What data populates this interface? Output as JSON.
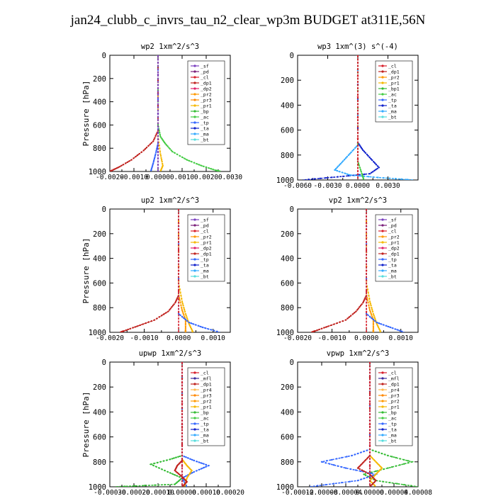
{
  "title": "jan24_clubb_c_invrs_tau_n2_clear_wp3m  BUDGET at311E,56N",
  "colors": {
    "_sf": "#7a3fbf",
    "_pd": "#7a1f7a",
    "_cl": "#d81e2a",
    "_mfl": "#3b2a9e",
    "_dp1": "#c0221e",
    "_dp2": "#e0206a",
    "_dp3": "#d81e2a",
    "_dp4": "#d81e2a",
    "_pr1": "#f5b800",
    "_pr2": "#ff9900",
    "_pr3": "#ff8800",
    "_pr4": "#ffb84d",
    "_bp": "#33bb33",
    "_bp1": "#33bb33",
    "_ac": "#44cc44",
    "_tp": "#3366ff",
    "_ta": "#1122cc",
    "_ma": "#33aaff",
    "_bt": "#55dddd"
  },
  "chart_data": [
    {
      "type": "line",
      "title": "wp2  1xm^2/s^3",
      "ylabel": "Pressure [hPa]",
      "xlim": [
        -0.002,
        0.003
      ],
      "ylim": [
        1000,
        0
      ],
      "xticks": [
        "-0.0020",
        "-0.0010",
        "0.0000",
        "0.0010",
        "0.0020",
        "0.0030"
      ],
      "xtick_values": [
        -0.002,
        -0.001,
        0,
        0.001,
        0.002,
        0.003
      ],
      "yticks": [
        "0",
        "200",
        "400",
        "600",
        "800",
        "1000"
      ],
      "legend": [
        "_sf",
        "_pd",
        "_cl",
        "_dp1",
        "_dp2",
        "_pr2",
        "_pr3",
        "_pr1",
        "_bp",
        "_ac",
        "_tp",
        "_ta",
        "_ma",
        "_bt"
      ],
      "series": [
        {
          "name": "_ac",
          "points": [
            [
              0,
              0
            ],
            [
              0,
              600
            ],
            [
              0.0001,
              700
            ],
            [
              0.0003,
              760
            ],
            [
              0.0006,
              830
            ],
            [
              0.0012,
              900
            ],
            [
              0.0018,
              950
            ],
            [
              0.0024,
              990
            ],
            [
              0.0026,
              1000
            ]
          ]
        },
        {
          "name": "_dp1",
          "points": [
            [
              0,
              0
            ],
            [
              0,
              650
            ],
            [
              -0.0002,
              740
            ],
            [
              -0.0006,
              820
            ],
            [
              -0.0011,
              900
            ],
            [
              -0.0016,
              960
            ],
            [
              -0.0019,
              990
            ],
            [
              -0.002,
              1000
            ]
          ]
        },
        {
          "name": "_tp",
          "points": [
            [
              0,
              0
            ],
            [
              0,
              760
            ],
            [
              -0.0001,
              850
            ],
            [
              -0.0002,
              930
            ],
            [
              -0.0003,
              1000
            ]
          ]
        },
        {
          "name": "_pr1",
          "points": [
            [
              0,
              0
            ],
            [
              0,
              700
            ],
            [
              0.0001,
              850
            ],
            [
              0.0002,
              950
            ],
            [
              0.0001,
              1000
            ]
          ]
        },
        {
          "name": "_pd",
          "points": [
            [
              0,
              0
            ],
            [
              0,
              1000
            ]
          ]
        },
        {
          "name": "_sf",
          "points": [
            [
              0,
              0
            ],
            [
              0,
              1000
            ]
          ]
        }
      ]
    },
    {
      "type": "line",
      "title": "wp3  1xm^(3) s^(-4)",
      "ylabel": "",
      "xlim": [
        -0.006,
        0.006
      ],
      "ylim": [
        1000,
        0
      ],
      "xticks": [
        "-0.0060",
        "-0.0030",
        "0.0000",
        "0.0030"
      ],
      "xtick_values": [
        -0.006,
        -0.003,
        0,
        0.003
      ],
      "yticks": [
        "0",
        "200",
        "400",
        "600",
        "800",
        "1000"
      ],
      "legend": [
        "_cl",
        "_dp1",
        "_pr2",
        "_pr1",
        "_bp1",
        "_ac",
        "_tp",
        "_ta",
        "_ma",
        "_bt"
      ],
      "series": [
        {
          "name": "_ta",
          "points": [
            [
              0,
              0
            ],
            [
              0,
              700
            ],
            [
              0.0005,
              760
            ],
            [
              0.0013,
              830
            ],
            [
              0.0021,
              900
            ],
            [
              0.0012,
              950
            ],
            [
              -0.002,
              975
            ],
            [
              -0.0055,
              1000
            ]
          ]
        },
        {
          "name": "_ma",
          "points": [
            [
              0,
              0
            ],
            [
              0,
              720
            ],
            [
              -0.0008,
              790
            ],
            [
              -0.0016,
              860
            ],
            [
              -0.0023,
              920
            ],
            [
              -0.0008,
              960
            ],
            [
              0.002,
              980
            ],
            [
              0.0055,
              1000
            ]
          ]
        },
        {
          "name": "_ac",
          "points": [
            [
              0,
              0
            ],
            [
              0,
              850
            ],
            [
              0.0004,
              950
            ],
            [
              0.0006,
              1000
            ]
          ]
        },
        {
          "name": "_dp1",
          "points": [
            [
              0,
              0
            ],
            [
              0,
              1000
            ]
          ]
        },
        {
          "name": "_cl",
          "points": [
            [
              0,
              0
            ],
            [
              0,
              1000
            ]
          ]
        }
      ]
    },
    {
      "type": "line",
      "title": "up2  1xm^2/s^3",
      "ylabel": "Pressure [hPa]",
      "xlim": [
        -0.002,
        0.0015
      ],
      "ylim": [
        1000,
        0
      ],
      "xticks": [
        "-0.0020",
        "-0.0010",
        "0.0000",
        "0.0010"
      ],
      "xtick_values": [
        -0.002,
        -0.001,
        0,
        0.001
      ],
      "yticks": [
        "0",
        "200",
        "400",
        "600",
        "800",
        "1000"
      ],
      "legend": [
        "_sf",
        "_pd",
        "_cl",
        "_pr2",
        "_pr1",
        "_dp2",
        "_dp1",
        "_tp",
        "_ta",
        "_ma",
        "_bt"
      ],
      "series": [
        {
          "name": "_dp1",
          "points": [
            [
              0,
              0
            ],
            [
              0,
              700
            ],
            [
              -0.0001,
              760
            ],
            [
              -0.0003,
              830
            ],
            [
              -0.0007,
              900
            ],
            [
              -0.0012,
              950
            ],
            [
              -0.0016,
              990
            ],
            [
              -0.0017,
              1000
            ]
          ]
        },
        {
          "name": "_pr1",
          "points": [
            [
              0,
              0
            ],
            [
              0,
              600
            ],
            [
              0.0001,
              750
            ],
            [
              0.0002,
              850
            ],
            [
              0.0003,
              930
            ],
            [
              0.0004,
              990
            ],
            [
              0.0004,
              1000
            ]
          ]
        },
        {
          "name": "_pr2",
          "points": [
            [
              0,
              0
            ],
            [
              0,
              700
            ],
            [
              0.0001,
              820
            ],
            [
              0.0002,
              900
            ],
            [
              0.0002,
              980
            ],
            [
              0.0002,
              1000
            ]
          ]
        },
        {
          "name": "_tp",
          "points": [
            [
              0,
              0
            ],
            [
              0,
              850
            ],
            [
              0.0003,
              920
            ],
            [
              0.0007,
              960
            ],
            [
              0.0012,
              1000
            ]
          ]
        },
        {
          "name": "_cl",
          "points": [
            [
              0,
              0
            ],
            [
              0,
              1000
            ]
          ]
        }
      ]
    },
    {
      "type": "line",
      "title": "vp2  1xm^2/s^3",
      "ylabel": "",
      "xlim": [
        -0.002,
        0.0015
      ],
      "ylim": [
        1000,
        0
      ],
      "xticks": [
        "-0.0020",
        "-0.0010",
        "0.0000",
        "0.0010"
      ],
      "xtick_values": [
        -0.002,
        -0.001,
        0,
        0.001
      ],
      "yticks": [
        "0",
        "200",
        "400",
        "600",
        "800",
        "1000"
      ],
      "legend": [
        "_sf",
        "_pd",
        "_cl",
        "_pr2",
        "_pr1",
        "_dp2",
        "_dp1",
        "_tp",
        "_ta",
        "_ma",
        "_bt"
      ],
      "series": [
        {
          "name": "_dp1",
          "points": [
            [
              0,
              0
            ],
            [
              0,
              700
            ],
            [
              -0.0001,
              760
            ],
            [
              -0.0003,
              830
            ],
            [
              -0.0006,
              900
            ],
            [
              -0.0011,
              950
            ],
            [
              -0.0015,
              990
            ],
            [
              -0.0016,
              1000
            ]
          ]
        },
        {
          "name": "_pr1",
          "points": [
            [
              0,
              0
            ],
            [
              0,
              600
            ],
            [
              0.0001,
              750
            ],
            [
              0.0002,
              850
            ],
            [
              0.0003,
              930
            ],
            [
              0.0004,
              990
            ],
            [
              0.0004,
              1000
            ]
          ]
        },
        {
          "name": "_pr2",
          "points": [
            [
              0,
              0
            ],
            [
              0,
              700
            ],
            [
              0.0001,
              820
            ],
            [
              0.0002,
              900
            ],
            [
              0.0002,
              980
            ],
            [
              0.0002,
              1000
            ]
          ]
        },
        {
          "name": "_tp",
          "points": [
            [
              0,
              0
            ],
            [
              0,
              850
            ],
            [
              0.0003,
              920
            ],
            [
              0.0007,
              960
            ],
            [
              0.0011,
              1000
            ]
          ]
        },
        {
          "name": "_cl",
          "points": [
            [
              0,
              0
            ],
            [
              0,
              1000
            ]
          ]
        }
      ]
    },
    {
      "type": "line",
      "title": "upwp  1xm^2/s^3",
      "ylabel": "Pressure [hPa]",
      "xlim": [
        -0.0003,
        0.0002
      ],
      "ylim": [
        1000,
        0
      ],
      "xticks": [
        "-0.00030",
        "-0.00020",
        "-0.00010",
        "0.00000",
        "0.00010",
        "0.00020"
      ],
      "xtick_values": [
        -0.0003,
        -0.0002,
        -0.0001,
        0,
        0.0001,
        0.0002
      ],
      "yticks": [
        "0",
        "200",
        "400",
        "600",
        "800",
        "1000"
      ],
      "legend": [
        "_cl",
        "_mfl",
        "_dp1",
        "_pr4",
        "_pr3",
        "_pr2",
        "_pr1",
        "_bp",
        "_ac",
        "_tp",
        "_ta",
        "_ma",
        "_bt"
      ],
      "series": [
        {
          "name": "_bp",
          "points": [
            [
              0,
              0
            ],
            [
              0,
              750
            ],
            [
              -5e-05,
              780
            ],
            [
              -0.00013,
              820
            ],
            [
              -6e-05,
              880
            ],
            [
              0,
              930
            ],
            [
              -3e-05,
              980
            ],
            [
              -0.00028,
              1000
            ]
          ]
        },
        {
          "name": "_tp",
          "points": [
            [
              0,
              0
            ],
            [
              0,
              750
            ],
            [
              5e-05,
              790
            ],
            [
              0.00011,
              830
            ],
            [
              5e-05,
              880
            ],
            [
              0,
              930
            ],
            [
              2e-05,
              1000
            ]
          ]
        },
        {
          "name": "_pr1",
          "points": [
            [
              0,
              0
            ],
            [
              0,
              780
            ],
            [
              2e-05,
              830
            ],
            [
              4e-05,
              870
            ],
            [
              2e-05,
              930
            ],
            [
              1e-05,
              1000
            ]
          ]
        },
        {
          "name": "_dp1",
          "points": [
            [
              0,
              0
            ],
            [
              0,
              790
            ],
            [
              -2e-05,
              830
            ],
            [
              -3e-05,
              870
            ],
            [
              0,
              920
            ],
            [
              2e-05,
              960
            ],
            [
              0,
              1000
            ]
          ]
        },
        {
          "name": "_mfl",
          "points": [
            [
              0,
              0
            ],
            [
              0,
              1000
            ]
          ]
        },
        {
          "name": "_cl",
          "points": [
            [
              0,
              0
            ],
            [
              0,
              1000
            ]
          ]
        }
      ]
    },
    {
      "type": "line",
      "title": "vpwp  1xm^2/s^3",
      "ylabel": "",
      "xlim": [
        -0.00012,
        8e-05
      ],
      "ylim": [
        1000,
        0
      ],
      "xticks": [
        "-0.00012",
        "-0.00008",
        "-0.00004",
        "0.00000",
        "0.00004",
        "0.00008"
      ],
      "xtick_values": [
        -0.00012,
        -8e-05,
        -4e-05,
        0,
        4e-05,
        8e-05
      ],
      "yticks": [
        "0",
        "200",
        "400",
        "600",
        "800",
        "1000"
      ],
      "legend": [
        "_cl",
        "_mfl",
        "_dp1",
        "_pr4",
        "_pr3",
        "_pr2",
        "_pr1",
        "_bp",
        "_ac",
        "_tp",
        "_ta",
        "_ma",
        "_bt"
      ],
      "series": [
        {
          "name": "_bp",
          "points": [
            [
              0,
              0
            ],
            [
              0,
              700
            ],
            [
              3e-05,
              750
            ],
            [
              7e-05,
              800
            ],
            [
              3e-05,
              850
            ],
            [
              -1e-05,
              900
            ],
            [
              1e-05,
              950
            ],
            [
              8e-05,
              1000
            ]
          ]
        },
        {
          "name": "_tp",
          "points": [
            [
              0,
              0
            ],
            [
              0,
              700
            ],
            [
              -3e-05,
              750
            ],
            [
              -8e-05,
              800
            ],
            [
              -4e-05,
              850
            ],
            [
              1e-05,
              900
            ],
            [
              -2e-05,
              950
            ],
            [
              -0.0001,
              1000
            ]
          ]
        },
        {
          "name": "_pr1",
          "points": [
            [
              0,
              0
            ],
            [
              0,
              750
            ],
            [
              1e-05,
              800
            ],
            [
              2e-05,
              850
            ],
            [
              1e-05,
              900
            ],
            [
              0,
              950
            ],
            [
              1e-05,
              1000
            ]
          ]
        },
        {
          "name": "_dp1",
          "points": [
            [
              0,
              0
            ],
            [
              0,
              750
            ],
            [
              -1e-05,
              800
            ],
            [
              -2e-05,
              850
            ],
            [
              0,
              900
            ],
            [
              1e-05,
              950
            ],
            [
              0,
              1000
            ]
          ]
        },
        {
          "name": "_mfl",
          "points": [
            [
              0,
              0
            ],
            [
              0,
              1000
            ]
          ]
        },
        {
          "name": "_cl",
          "points": [
            [
              0,
              0
            ],
            [
              0,
              1000
            ]
          ]
        }
      ]
    }
  ]
}
